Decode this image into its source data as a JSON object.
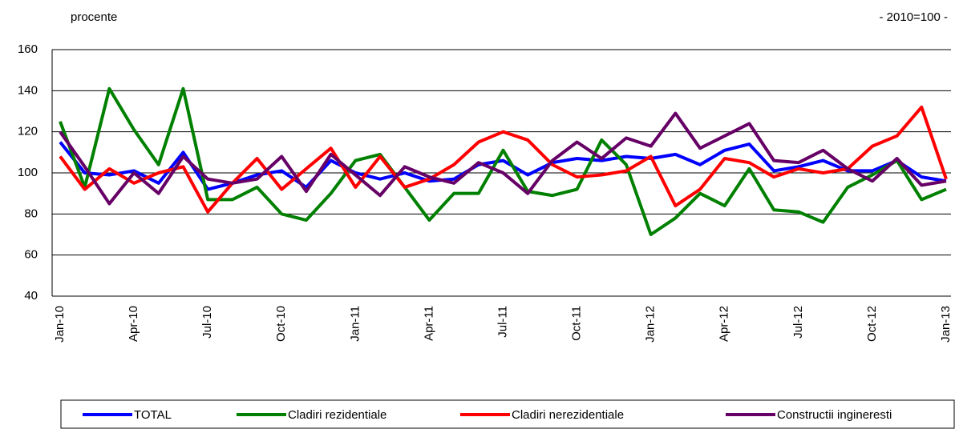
{
  "chart_data": {
    "type": "line",
    "subtitle": "procente",
    "annotation": "- 2010=100 -",
    "categories": [
      "Jan-10",
      null,
      null,
      "Apr-10",
      null,
      null,
      "Jul-10",
      null,
      null,
      "Oct-10",
      null,
      null,
      "Jan-11",
      null,
      null,
      "Apr-11",
      null,
      null,
      "Jul-11",
      null,
      null,
      "Oct-11",
      null,
      null,
      "Jan-12",
      null,
      null,
      "Apr-12",
      null,
      null,
      "Jul-12",
      null,
      null,
      "Oct-12",
      null,
      null,
      "Jan-13"
    ],
    "series": [
      {
        "name": "TOTAL",
        "color": "#0000ff",
        "values": [
          115,
          100,
          99,
          101,
          95,
          110,
          92,
          95,
          99,
          101,
          93,
          106,
          100,
          97,
          100,
          96,
          97,
          104,
          106,
          99,
          105,
          107,
          106,
          108,
          107,
          109,
          104,
          111,
          114,
          101,
          103,
          106,
          101,
          101,
          106,
          98,
          96
        ]
      },
      {
        "name": "Cladiri rezidentiale",
        "color": "#008000",
        "values": [
          125,
          93,
          141,
          121,
          104,
          141,
          87,
          87,
          93,
          80,
          77,
          90,
          106,
          109,
          93,
          77,
          90,
          90,
          111,
          91,
          89,
          92,
          116,
          104,
          70,
          78,
          90,
          84,
          102,
          82,
          81,
          76,
          93,
          99,
          106,
          87,
          92
        ]
      },
      {
        "name": "Cladiri nerezidentiale",
        "color": "#ff0000",
        "values": [
          108,
          92,
          102,
          95,
          100,
          103,
          81,
          95,
          107,
          92,
          102,
          112,
          93,
          108,
          93,
          97,
          104,
          115,
          120,
          116,
          104,
          98,
          99,
          101,
          108,
          84,
          92,
          107,
          105,
          98,
          102,
          100,
          102,
          113,
          118,
          132,
          97
        ]
      },
      {
        "name": "Constructii ingineresti",
        "color": "#660066",
        "values": [
          120,
          103,
          85,
          100,
          90,
          108,
          97,
          95,
          97,
          108,
          91,
          109,
          99,
          89,
          103,
          98,
          95,
          105,
          100,
          90,
          106,
          115,
          107,
          117,
          113,
          129,
          112,
          118,
          124,
          106,
          105,
          111,
          102,
          96,
          107,
          94,
          96
        ]
      }
    ],
    "ylim": [
      40,
      160
    ],
    "yticks": [
      40,
      60,
      80,
      100,
      120,
      140,
      160
    ],
    "grid": true
  }
}
